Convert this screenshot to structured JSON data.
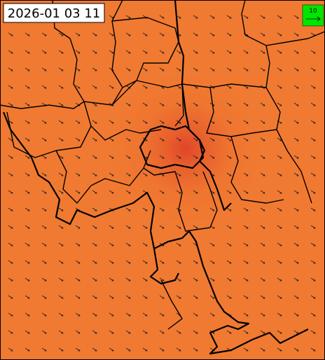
{
  "timestamp": "2026-01 03 11",
  "legend": {
    "label": "10"
  }
}
